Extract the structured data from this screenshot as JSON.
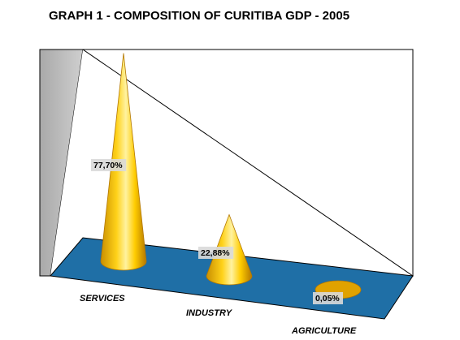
{
  "chart_data": {
    "type": "bar",
    "subtype": "3d-cone",
    "title": "GRAPH 1 - COMPOSITION OF CURITIBA GDP - 2005",
    "categories": [
      "SERVICES",
      "INDUSTRY",
      "AGRICULTURE"
    ],
    "values": [
      77.7,
      22.88,
      0.05
    ],
    "data_labels": [
      "77,70%",
      "22,88%",
      "0,05%"
    ],
    "ylim": [
      0,
      100
    ],
    "grid": false,
    "legend": "none",
    "colors": {
      "cone": "#ffcc00",
      "cone_dark": "#b37700",
      "floor": "#1f6fa6",
      "side_wall": "#c0c0c0",
      "back_wall": "#ffffff",
      "outline": "#000000",
      "label_bg": "#d9d9d9"
    }
  }
}
